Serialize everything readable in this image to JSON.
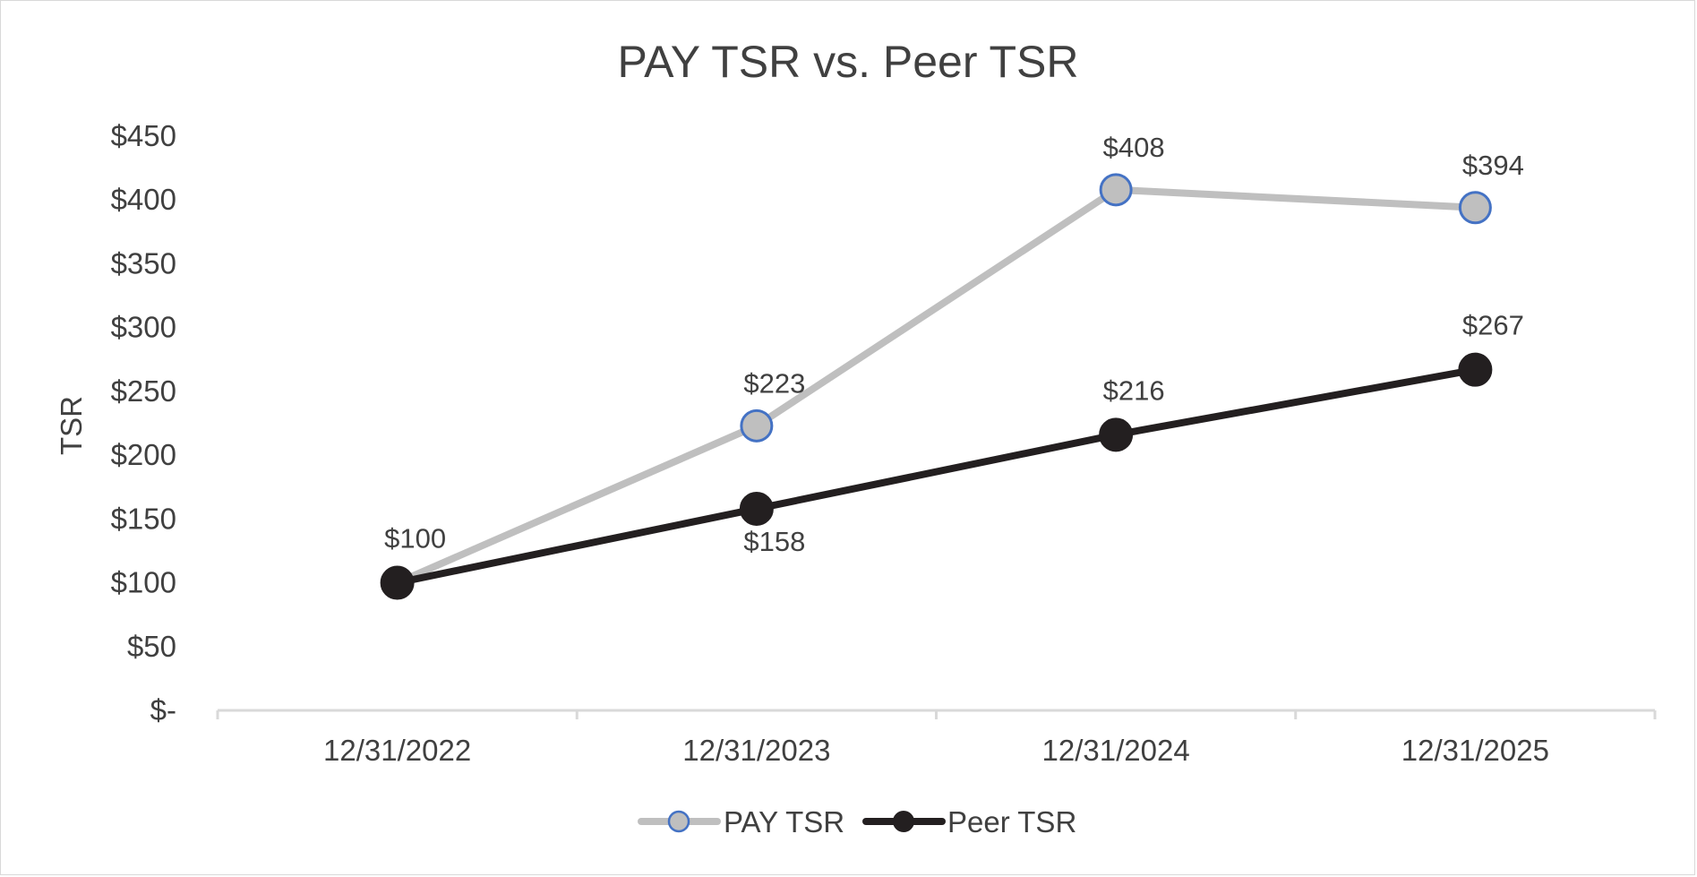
{
  "chart_data": {
    "type": "line",
    "title": "PAY TSR vs. Peer TSR",
    "xlabel": "",
    "ylabel": "TSR",
    "categories": [
      "12/31/2022",
      "12/31/2023",
      "12/31/2024",
      "12/31/2025"
    ],
    "ylim": [
      0,
      450
    ],
    "yticks": [
      0,
      50,
      100,
      150,
      200,
      250,
      300,
      350,
      400,
      450
    ],
    "ytick_labels": [
      "$-",
      "$50",
      "$100",
      "$150",
      "$200",
      "$250",
      "$300",
      "$350",
      "$400",
      "$450"
    ],
    "grid": false,
    "legend_position": "bottom",
    "series": [
      {
        "name": "PAY TSR",
        "values": [
          100,
          223,
          408,
          394
        ],
        "data_labels": [
          "$100",
          "$223",
          "$408",
          "$394"
        ],
        "line_color": "#bfbfbf",
        "marker_fill": "#bfbfbf",
        "marker_stroke": "#4472c4"
      },
      {
        "name": "Peer TSR",
        "values": [
          100,
          158,
          216,
          267
        ],
        "data_labels": [
          "$100",
          "$158",
          "$216",
          "$267"
        ],
        "line_color": "#231f20",
        "marker_fill": "#231f20",
        "marker_stroke": "#231f20"
      }
    ],
    "axis_color": "#d9d9d9"
  }
}
